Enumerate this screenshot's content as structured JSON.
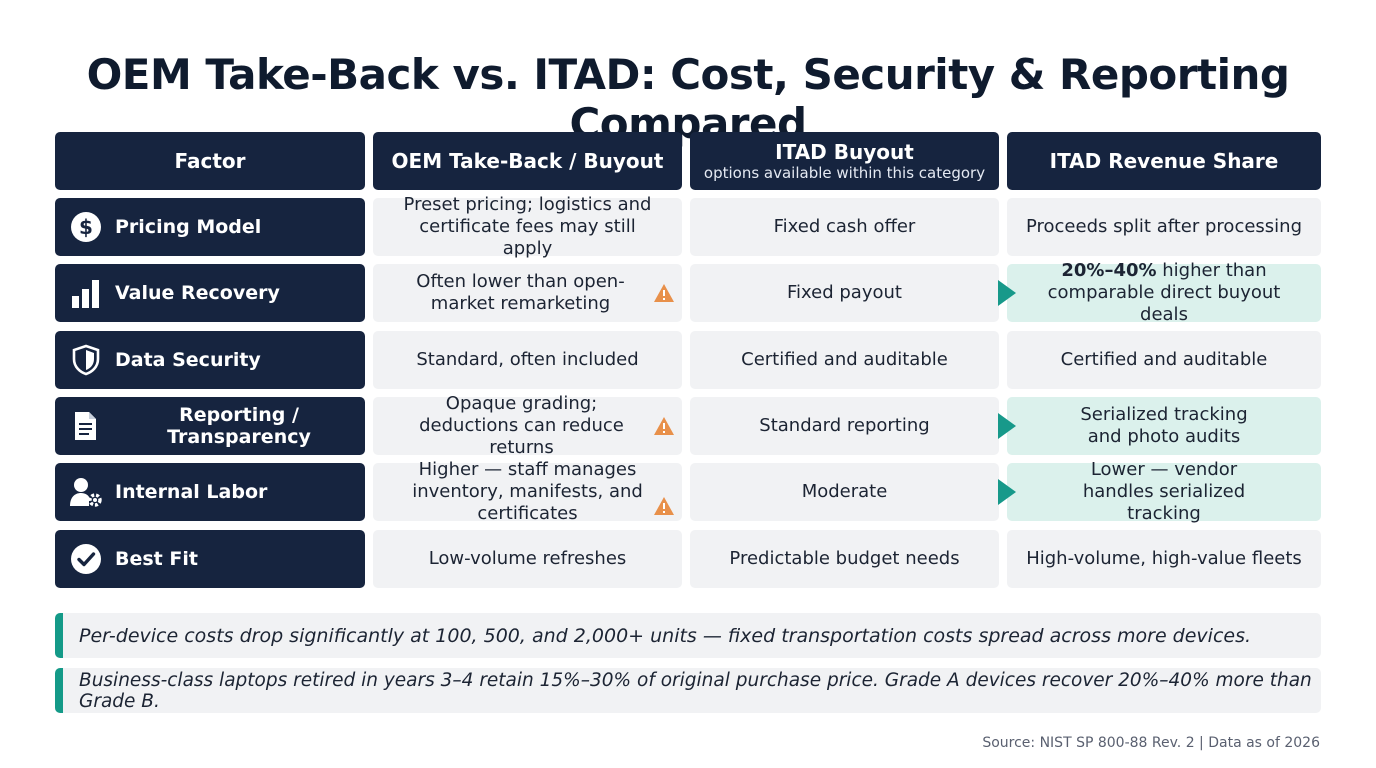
{
  "title": "OEM Take-Back vs. ITAD: Cost, Security & Reporting Compared",
  "columns": [
    {
      "label": "Factor",
      "sub": ""
    },
    {
      "label": "OEM Take-Back / Buyout",
      "sub": ""
    },
    {
      "label": "ITAD Buyout",
      "sub": "options available within this category"
    },
    {
      "label": "ITAD Revenue Share",
      "sub": ""
    }
  ],
  "rows": [
    {
      "factor": "Pricing Model",
      "icon": "dollar-icon",
      "oem": "Preset pricing; logistics and certificate fees may still apply",
      "oem_warn": false,
      "buyout": "Fixed cash offer",
      "revshare_bold": "",
      "revshare": "Proceeds split after processing",
      "revshare_hl": false
    },
    {
      "factor": "Value Recovery",
      "icon": "bar-chart-icon",
      "oem": "Often lower than open-market remarketing",
      "oem_warn": true,
      "buyout": "Fixed payout",
      "revshare_bold": "20%–40%",
      "revshare": " higher than comparable direct buyout deals",
      "revshare_hl": true
    },
    {
      "factor": "Data Security",
      "icon": "shield-icon",
      "oem": "Standard, often included",
      "oem_warn": false,
      "buyout": "Certified and auditable",
      "revshare_bold": "",
      "revshare": "Certified and auditable",
      "revshare_hl": false
    },
    {
      "factor": "Reporting / Transparency",
      "icon": "document-icon",
      "oem": "Opaque grading; deductions can reduce returns",
      "oem_warn": true,
      "buyout": "Standard reporting",
      "revshare_bold": "",
      "revshare": "Serialized tracking and photo audits",
      "revshare_hl": true
    },
    {
      "factor": "Internal Labor",
      "icon": "user-gear-icon",
      "oem": "Higher — staff manages inventory, manifests, and certificates",
      "oem_warn": true,
      "buyout": "Moderate",
      "revshare_bold": "",
      "revshare": "Lower — vendor handles serialized tracking",
      "revshare_hl": true
    },
    {
      "factor": "Best Fit",
      "icon": "check-circle-icon",
      "oem": "Low-volume refreshes",
      "oem_warn": false,
      "buyout": "Predictable budget needs",
      "revshare_bold": "",
      "revshare": "High-volume, high-value fleets",
      "revshare_hl": false
    }
  ],
  "notes": [
    "Per-device costs drop significantly at 100, 500, and 2,000+ units — fixed transportation costs spread across more devices.",
    "Business-class laptops retired in years 3–4 retain 15%–30% of original purchase price. Grade A devices recover 20%–40% more than Grade B."
  ],
  "source": "Source: NIST SP 800-88 Rev. 2 | Data as of 2026",
  "colors": {
    "header": "#16243f",
    "cell": "#f1f2f4",
    "highlight": "#dbf1ec",
    "accent": "#17998a",
    "warning": "#e8904a"
  }
}
